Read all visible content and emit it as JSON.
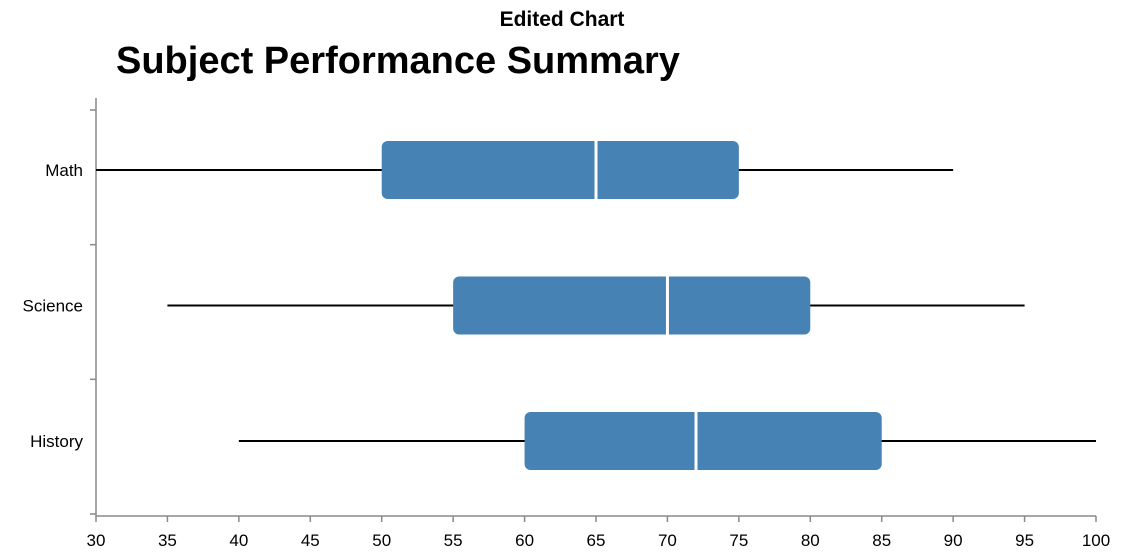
{
  "header": "Edited Chart",
  "chart_data": {
    "type": "boxplot",
    "title": "Subject Performance Summary",
    "orientation": "horizontal",
    "xlabel": "",
    "ylabel": "",
    "xlim": [
      30,
      100
    ],
    "x_ticks": [
      30,
      35,
      40,
      45,
      50,
      55,
      60,
      65,
      70,
      75,
      80,
      85,
      90,
      95,
      100
    ],
    "categories": [
      "Math",
      "Science",
      "History"
    ],
    "series": [
      {
        "category": "Math",
        "min": 30,
        "q1": 50,
        "median": 65,
        "q3": 75,
        "max": 90
      },
      {
        "category": "Science",
        "min": 35,
        "q1": 55,
        "median": 70,
        "q3": 80,
        "max": 95
      },
      {
        "category": "History",
        "min": 40,
        "q1": 60,
        "median": 72,
        "q3": 85,
        "max": 100
      }
    ],
    "box_color": "#4682b4",
    "median_color": "#ffffff",
    "grid": false
  }
}
